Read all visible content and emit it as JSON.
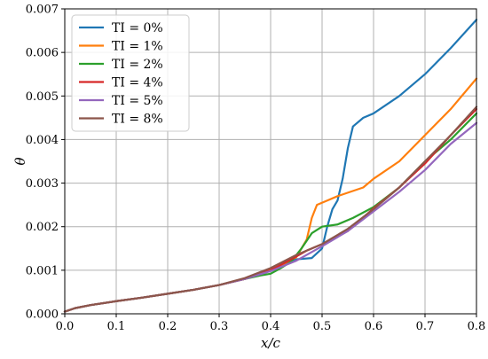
{
  "chart_data": {
    "type": "line",
    "title": "",
    "xlabel": "x/c",
    "ylabel": "θ",
    "xlim": [
      0.0,
      0.8
    ],
    "ylim": [
      0.0,
      0.007
    ],
    "grid": true,
    "legend_position": "top-left",
    "x_ticks": [
      "0.0",
      "0.1",
      "0.2",
      "0.3",
      "0.4",
      "0.5",
      "0.6",
      "0.7",
      "0.8"
    ],
    "y_ticks": [
      "0.000",
      "0.001",
      "0.002",
      "0.003",
      "0.004",
      "0.005",
      "0.006",
      "0.007"
    ],
    "series": [
      {
        "name": "TI = 0%",
        "color": "#1f77b4",
        "points": [
          [
            0.0,
            5e-05
          ],
          [
            0.02,
            0.00013
          ],
          [
            0.05,
            0.0002
          ],
          [
            0.1,
            0.00029
          ],
          [
            0.15,
            0.00037
          ],
          [
            0.2,
            0.00046
          ],
          [
            0.25,
            0.00055
          ],
          [
            0.3,
            0.00066
          ],
          [
            0.35,
            0.0008
          ],
          [
            0.38,
            0.00092
          ],
          [
            0.42,
            0.0011
          ],
          [
            0.45,
            0.00125
          ],
          [
            0.48,
            0.00128
          ],
          [
            0.5,
            0.0015
          ],
          [
            0.51,
            0.002
          ],
          [
            0.52,
            0.0024
          ],
          [
            0.53,
            0.0026
          ],
          [
            0.54,
            0.0031
          ],
          [
            0.55,
            0.0038
          ],
          [
            0.56,
            0.0043
          ],
          [
            0.58,
            0.0045
          ],
          [
            0.6,
            0.0046
          ],
          [
            0.65,
            0.005
          ],
          [
            0.7,
            0.0055
          ],
          [
            0.75,
            0.0061
          ],
          [
            0.8,
            0.00675
          ]
        ]
      },
      {
        "name": "TI = 1%",
        "color": "#ff7f0e",
        "points": [
          [
            0.0,
            5e-05
          ],
          [
            0.02,
            0.00013
          ],
          [
            0.05,
            0.0002
          ],
          [
            0.1,
            0.00029
          ],
          [
            0.15,
            0.00037
          ],
          [
            0.2,
            0.00046
          ],
          [
            0.25,
            0.00055
          ],
          [
            0.3,
            0.00066
          ],
          [
            0.35,
            0.0008
          ],
          [
            0.38,
            0.00092
          ],
          [
            0.42,
            0.0011
          ],
          [
            0.45,
            0.0013
          ],
          [
            0.47,
            0.0017
          ],
          [
            0.48,
            0.0022
          ],
          [
            0.49,
            0.0025
          ],
          [
            0.51,
            0.0026
          ],
          [
            0.53,
            0.0027
          ],
          [
            0.55,
            0.00278
          ],
          [
            0.58,
            0.0029
          ],
          [
            0.6,
            0.0031
          ],
          [
            0.65,
            0.0035
          ],
          [
            0.7,
            0.0041
          ],
          [
            0.75,
            0.0047
          ],
          [
            0.8,
            0.0054
          ]
        ]
      },
      {
        "name": "TI = 2%",
        "color": "#2ca02c",
        "points": [
          [
            0.0,
            5e-05
          ],
          [
            0.02,
            0.00013
          ],
          [
            0.05,
            0.0002
          ],
          [
            0.1,
            0.00029
          ],
          [
            0.15,
            0.00037
          ],
          [
            0.2,
            0.00046
          ],
          [
            0.25,
            0.00055
          ],
          [
            0.3,
            0.00066
          ],
          [
            0.35,
            0.0008
          ],
          [
            0.38,
            0.00088
          ],
          [
            0.4,
            0.00092
          ],
          [
            0.42,
            0.00105
          ],
          [
            0.44,
            0.0012
          ],
          [
            0.46,
            0.0015
          ],
          [
            0.48,
            0.00185
          ],
          [
            0.5,
            0.002
          ],
          [
            0.53,
            0.00205
          ],
          [
            0.56,
            0.0022
          ],
          [
            0.6,
            0.00245
          ],
          [
            0.65,
            0.0029
          ],
          [
            0.7,
            0.0035
          ],
          [
            0.75,
            0.004
          ],
          [
            0.8,
            0.0046
          ]
        ]
      },
      {
        "name": "TI = 4%",
        "color": "#d62728",
        "points": [
          [
            0.0,
            5e-05
          ],
          [
            0.02,
            0.00013
          ],
          [
            0.05,
            0.0002
          ],
          [
            0.1,
            0.00029
          ],
          [
            0.15,
            0.00037
          ],
          [
            0.2,
            0.00046
          ],
          [
            0.25,
            0.00055
          ],
          [
            0.3,
            0.00066
          ],
          [
            0.35,
            0.0008
          ],
          [
            0.4,
            0.001
          ],
          [
            0.44,
            0.00125
          ],
          [
            0.47,
            0.00145
          ],
          [
            0.5,
            0.0016
          ],
          [
            0.55,
            0.0019
          ],
          [
            0.6,
            0.00242
          ],
          [
            0.65,
            0.0029
          ],
          [
            0.7,
            0.00345
          ],
          [
            0.75,
            0.0041
          ],
          [
            0.8,
            0.0047
          ]
        ]
      },
      {
        "name": "TI = 5%",
        "color": "#9467bd",
        "points": [
          [
            0.0,
            5e-05
          ],
          [
            0.02,
            0.00013
          ],
          [
            0.05,
            0.0002
          ],
          [
            0.1,
            0.00029
          ],
          [
            0.15,
            0.00037
          ],
          [
            0.2,
            0.00046
          ],
          [
            0.25,
            0.00055
          ],
          [
            0.3,
            0.00066
          ],
          [
            0.35,
            0.0008
          ],
          [
            0.4,
            0.00098
          ],
          [
            0.45,
            0.00122
          ],
          [
            0.5,
            0.00155
          ],
          [
            0.55,
            0.0019
          ],
          [
            0.6,
            0.00235
          ],
          [
            0.65,
            0.0028
          ],
          [
            0.7,
            0.0033
          ],
          [
            0.75,
            0.0039
          ],
          [
            0.8,
            0.00438
          ]
        ]
      },
      {
        "name": "TI = 8%",
        "color": "#8c564b",
        "points": [
          [
            0.0,
            5e-05
          ],
          [
            0.02,
            0.00013
          ],
          [
            0.05,
            0.0002
          ],
          [
            0.1,
            0.00029
          ],
          [
            0.15,
            0.00037
          ],
          [
            0.2,
            0.00046
          ],
          [
            0.25,
            0.00055
          ],
          [
            0.3,
            0.00066
          ],
          [
            0.35,
            0.00082
          ],
          [
            0.4,
            0.00105
          ],
          [
            0.45,
            0.00135
          ],
          [
            0.5,
            0.0016
          ],
          [
            0.55,
            0.00195
          ],
          [
            0.6,
            0.0024
          ],
          [
            0.65,
            0.0029
          ],
          [
            0.7,
            0.0035
          ],
          [
            0.75,
            0.0041
          ],
          [
            0.8,
            0.00475
          ]
        ]
      }
    ]
  }
}
